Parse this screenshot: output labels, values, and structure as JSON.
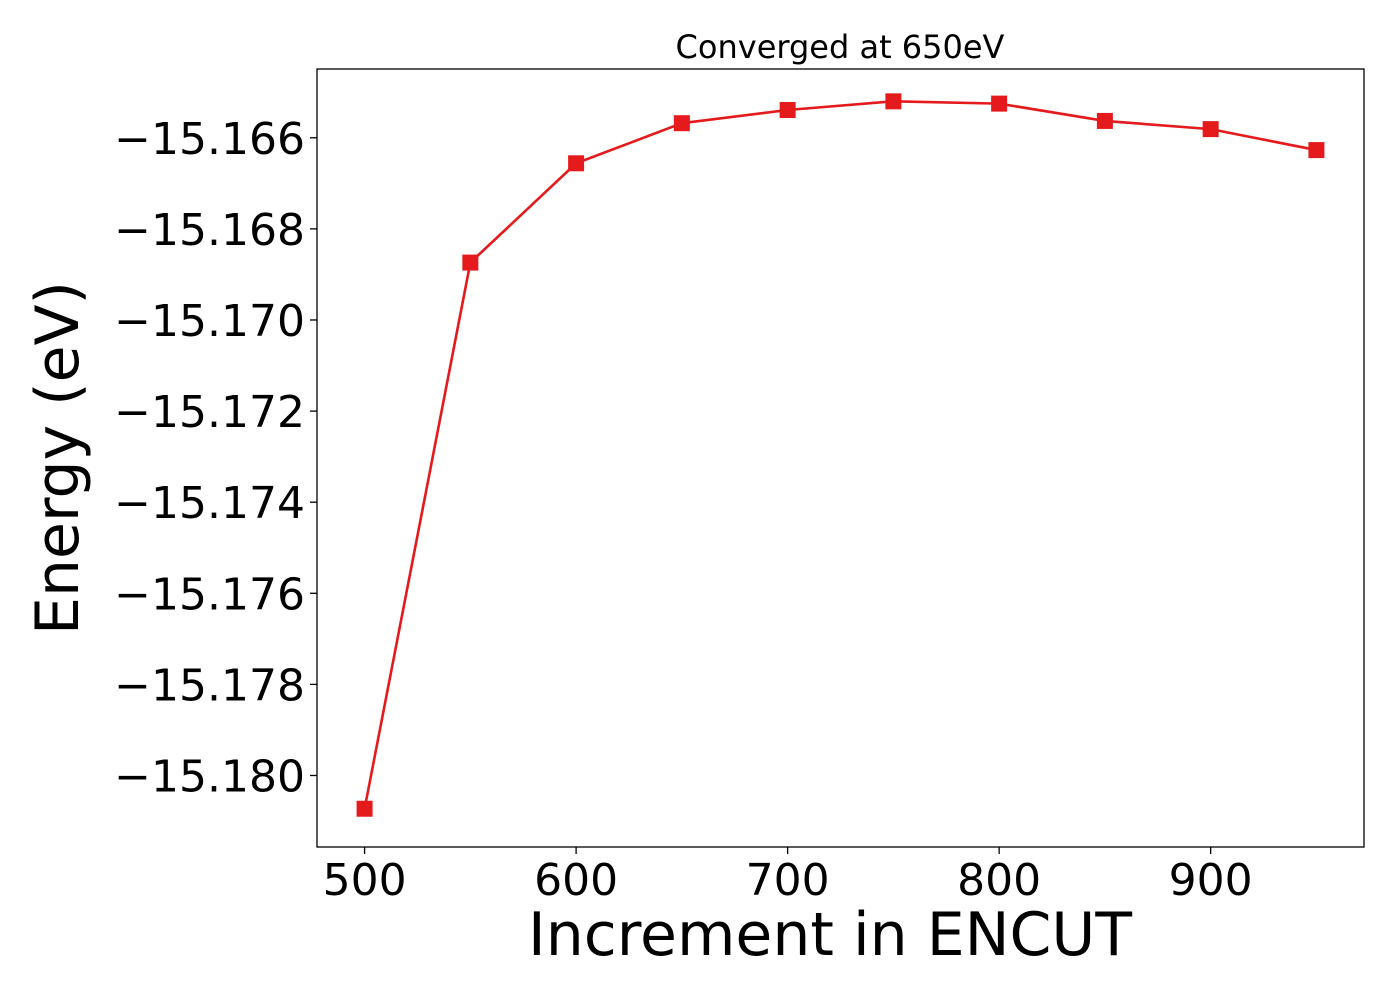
{
  "chart_data": {
    "type": "line",
    "title": "Converged at 650eV",
    "xlabel": "Increment in ENCUT",
    "ylabel": "Energy (eV)",
    "xlim": [
      477.5,
      972.5
    ],
    "ylim": [
      -15.18157,
      -15.16449
    ],
    "x_ticks": [
      500,
      600,
      700,
      800,
      900
    ],
    "x_tick_labels": [
      "500",
      "600",
      "700",
      "800",
      "900"
    ],
    "y_ticks": [
      -15.166,
      -15.168,
      -15.17,
      -15.172,
      -15.174,
      -15.176,
      -15.178,
      -15.18
    ],
    "y_tick_labels": [
      "−15.166",
      "−15.168",
      "−15.170",
      "−15.172",
      "−15.174",
      "−15.176",
      "−15.178",
      "−15.180"
    ],
    "grid": false,
    "series": [
      {
        "color": "#e41a1c",
        "marker": "square",
        "x": [
          500,
          550,
          600,
          650,
          700,
          750,
          800,
          850,
          900,
          950
        ],
        "y": [
          -15.18073,
          -15.16874,
          -15.16656,
          -15.16568,
          -15.16539,
          -15.1652,
          -15.16525,
          -15.16563,
          -15.16581,
          -15.16627
        ]
      }
    ]
  }
}
